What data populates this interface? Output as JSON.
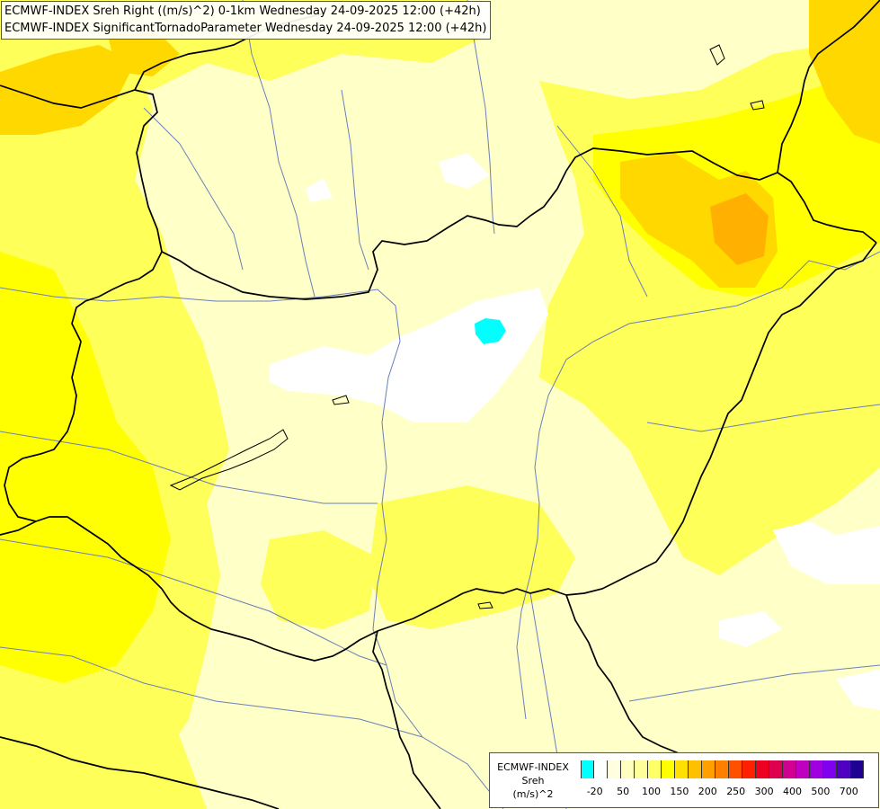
{
  "titles": [
    "ECMWF-INDEX Sreh Right ((m/s)^2) 0-1km Wednesday 24-09-2025 12:00 (+42h)",
    "ECMWF-INDEX SignificantTornadoParameter Wednesday 24-09-2025 12:00 (+42h)"
  ],
  "legend": {
    "model": "ECMWF-INDEX",
    "parameter": "Sreh",
    "unit": "(m/s)^2",
    "colors": [
      "#00ffff",
      "#ffffff",
      "#ffffe0",
      "#ffffc0",
      "#ffff99",
      "#ffff66",
      "#ffff00",
      "#ffe000",
      "#ffc000",
      "#ffa000",
      "#ff8000",
      "#ff5000",
      "#ff2000",
      "#ee0020",
      "#dd0050",
      "#d00090",
      "#c000c0",
      "#a000e0",
      "#8000f0",
      "#5000c0",
      "#200090"
    ],
    "labels": [
      "-20",
      "50",
      "100",
      "150",
      "200",
      "250",
      "300",
      "400",
      "500",
      "700"
    ]
  },
  "map_colors": {
    "background": "#ffffc8",
    "pale": "#ffffa6",
    "yellow": "#ffff5a",
    "bright": "#ffff00",
    "gold": "#ffd800",
    "orange": "#ffb000",
    "white": "#ffffff",
    "cyan": "#00ffff",
    "border": "#000000",
    "river": "#6a7fb8"
  }
}
